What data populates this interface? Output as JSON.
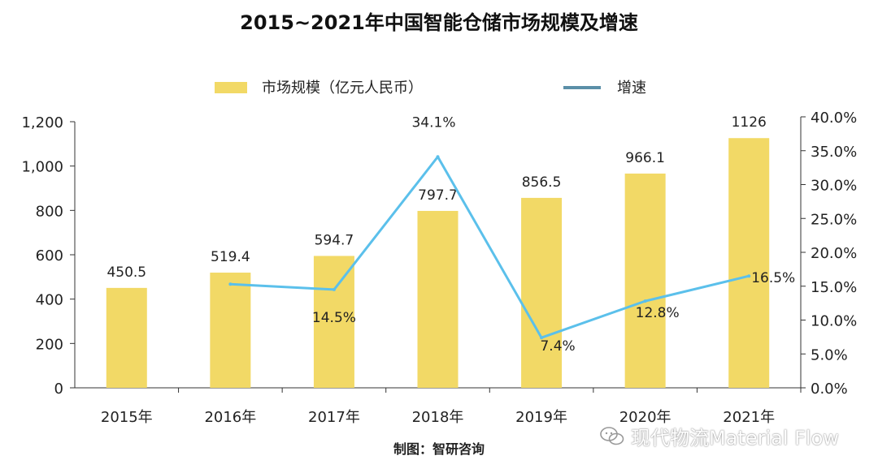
{
  "chart_data": {
    "type": "bar+line",
    "title": "2015~2021年中国智能仓储市场规模及增速",
    "categories": [
      "2015年",
      "2016年",
      "2017年",
      "2018年",
      "2019年",
      "2020年",
      "2021年"
    ],
    "series": [
      {
        "name": "市场规模（亿元人民币）",
        "type": "bar",
        "axis": "left",
        "values": [
          450.5,
          519.4,
          594.7,
          797.7,
          856.5,
          966.1,
          1126
        ],
        "labels": [
          "450.5",
          "519.4",
          "594.7",
          "797.7",
          "856.5",
          "966.1",
          "1126"
        ]
      },
      {
        "name": "增速",
        "type": "line",
        "axis": "right",
        "values": [
          null,
          15.3,
          14.5,
          34.1,
          7.4,
          12.8,
          16.5
        ],
        "labels": [
          "",
          "",
          "14.5%",
          "34.1%",
          "7.4%",
          "12.8%",
          "16.5%"
        ]
      }
    ],
    "y_left": {
      "ylim": [
        0,
        1200
      ],
      "ticks": [
        0,
        200,
        400,
        600,
        800,
        1000,
        1200
      ],
      "tick_labels": [
        "0",
        "200",
        "400",
        "600",
        "800",
        "1,000",
        "1,200"
      ]
    },
    "y_right": {
      "ylim": [
        0,
        40
      ],
      "ticks": [
        0,
        5,
        10,
        15,
        20,
        25,
        30,
        35,
        40
      ],
      "tick_labels": [
        "0.0%",
        "5.0%",
        "10.0%",
        "15.0%",
        "20.0%",
        "25.0%",
        "30.0%",
        "35.0%",
        "40.0%"
      ]
    },
    "grid": false,
    "legend_position": "top-center",
    "colors": {
      "bar": "#F2D966",
      "line": "#5BC0EB",
      "legend_line": "#5B8FA8"
    },
    "source": "制图：智研咨询"
  },
  "watermark": "现代物流Material Flow"
}
